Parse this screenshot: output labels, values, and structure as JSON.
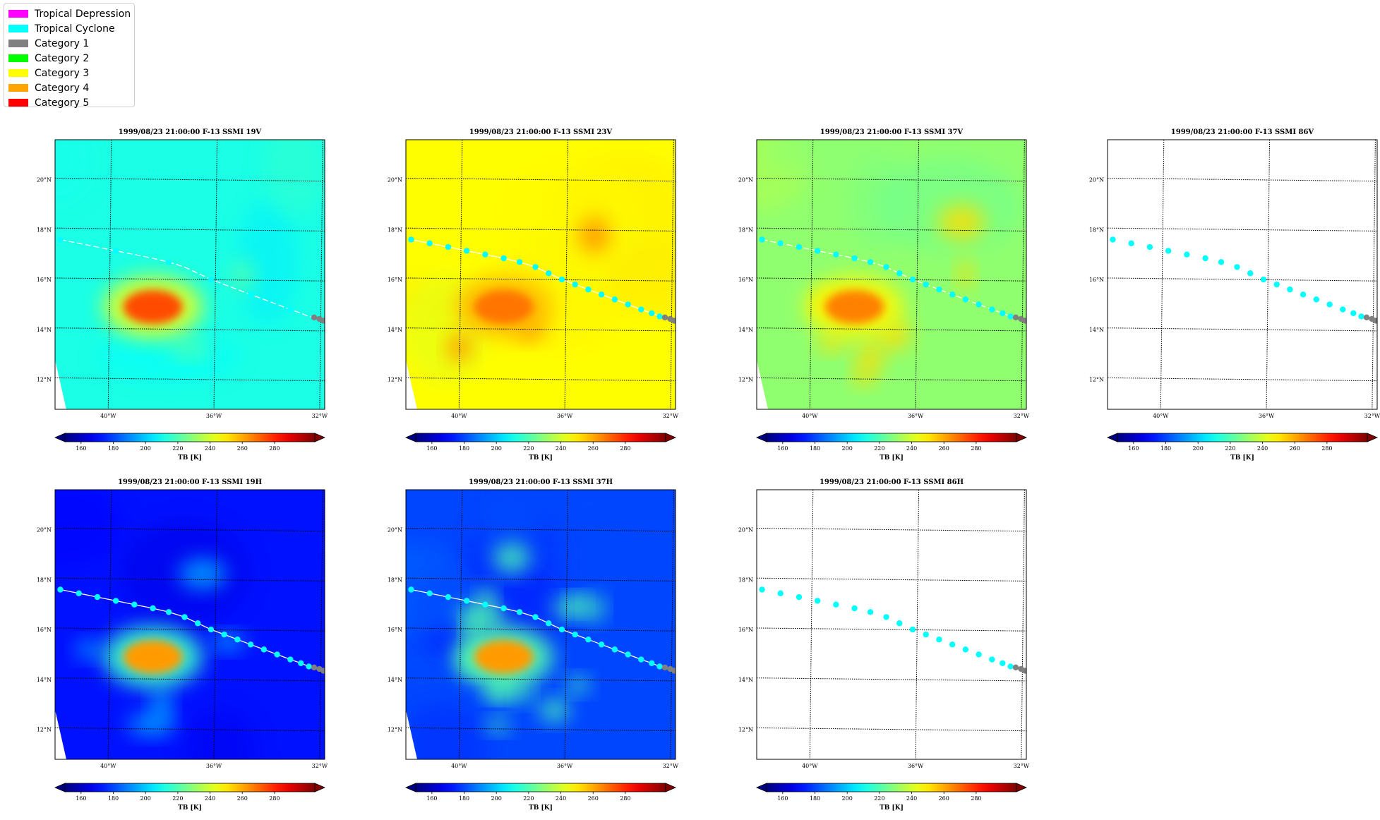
{
  "legend": {
    "items": [
      {
        "label": "Tropical Depression",
        "color": "#ff00ff"
      },
      {
        "label": "Tropical Cyclone",
        "color": "#00ffff"
      },
      {
        "label": "Category 1",
        "color": "#808080"
      },
      {
        "label": "Category 2",
        "color": "#00ff00"
      },
      {
        "label": "Category 3",
        "color": "#ffff00"
      },
      {
        "label": "Category 4",
        "color": "#ffa500"
      },
      {
        "label": "Category 5",
        "color": "#ff0000"
      }
    ]
  },
  "map_extent": {
    "lon": [
      -42.1,
      -31.9
    ],
    "lat": [
      10.8,
      21.6
    ]
  },
  "lon_ticks": [
    "40°W",
    "36°W",
    "32°W"
  ],
  "lat_ticks": [
    "20°N",
    "18°N",
    "16°N",
    "14°N",
    "12°N"
  ],
  "colorbar": {
    "ticks": [
      "160",
      "180",
      "200",
      "220",
      "240",
      "260",
      "280"
    ],
    "label": "TB [K]",
    "range": [
      150,
      305
    ],
    "extend": "both",
    "colormap": "jet"
  },
  "track": [
    {
      "lon": -41.9,
      "lat": 17.6,
      "cat": "Tropical Cyclone"
    },
    {
      "lon": -41.2,
      "lat": 17.45,
      "cat": "Tropical Cyclone"
    },
    {
      "lon": -40.5,
      "lat": 17.3,
      "cat": "Tropical Cyclone"
    },
    {
      "lon": -39.8,
      "lat": 17.15,
      "cat": "Tropical Cyclone"
    },
    {
      "lon": -39.1,
      "lat": 17.0,
      "cat": "Tropical Cyclone"
    },
    {
      "lon": -38.4,
      "lat": 16.85,
      "cat": "Tropical Cyclone"
    },
    {
      "lon": -37.8,
      "lat": 16.7,
      "cat": "Tropical Cyclone"
    },
    {
      "lon": -37.2,
      "lat": 16.5,
      "cat": "Tropical Cyclone"
    },
    {
      "lon": -36.7,
      "lat": 16.25,
      "cat": "Tropical Cyclone"
    },
    {
      "lon": -36.2,
      "lat": 16.0,
      "cat": "Tropical Cyclone"
    },
    {
      "lon": -35.7,
      "lat": 15.8,
      "cat": "Tropical Cyclone"
    },
    {
      "lon": -35.2,
      "lat": 15.6,
      "cat": "Tropical Cyclone"
    },
    {
      "lon": -34.7,
      "lat": 15.4,
      "cat": "Tropical Cyclone"
    },
    {
      "lon": -34.2,
      "lat": 15.2,
      "cat": "Tropical Cyclone"
    },
    {
      "lon": -33.7,
      "lat": 15.0,
      "cat": "Tropical Cyclone"
    },
    {
      "lon": -33.2,
      "lat": 14.8,
      "cat": "Tropical Cyclone"
    },
    {
      "lon": -32.8,
      "lat": 14.65,
      "cat": "Tropical Cyclone"
    },
    {
      "lon": -32.5,
      "lat": 14.52,
      "cat": "Tropical Cyclone"
    },
    {
      "lon": -32.3,
      "lat": 14.48,
      "cat": "Category 1"
    },
    {
      "lon": -32.1,
      "lat": 14.42,
      "cat": "Category 1"
    },
    {
      "lon": -31.95,
      "lat": 14.35,
      "cat": "Category 1"
    },
    {
      "lon": -31.8,
      "lat": 14.25,
      "cat": "Category 1"
    }
  ],
  "panels": [
    {
      "title": "1999/08/23 21:00:00  F-13 SSMI 19V",
      "field": {
        "base": 212,
        "warm": 274,
        "ring": 0,
        "base_n": 4,
        "ring_n": 2
      },
      "track_line": "dashed",
      "show_markers": "partial",
      "has_image": true
    },
    {
      "title": "1999/08/23 21:00:00  F-13 SSMI 23V",
      "field": {
        "base": 247,
        "warm": 268,
        "ring": 8,
        "base_n": 7,
        "ring_n": 3
      },
      "track_line": "solid",
      "show_markers": "all",
      "has_image": true
    },
    {
      "title": "1999/08/23 21:00:00  F-13 SSMI 37V",
      "field": {
        "base": 230,
        "warm": 266,
        "ring": 12,
        "base_n": 5,
        "ring_n": 7
      },
      "track_line": "dashed",
      "show_markers": "all",
      "has_image": true
    },
    {
      "title": "1999/08/23 21:00:00  F-13 SSMI 86V",
      "field": null,
      "track_line": "none",
      "show_markers": "all",
      "has_image": false
    },
    {
      "title": "1999/08/23 21:00:00  F-13 SSMI 19H",
      "field": {
        "base": 172,
        "warm": 262,
        "ring": 14,
        "base_n": 3,
        "ring_n": 5
      },
      "track_line": "solid",
      "show_markers": "all",
      "has_image": true
    },
    {
      "title": "1999/08/23 21:00:00  F-13 SSMI 37H",
      "field": {
        "base": 180,
        "warm": 262,
        "ring": 30,
        "base_n": 8,
        "ring_n": 14
      },
      "track_line": "solid",
      "show_markers": "all",
      "has_image": true
    },
    {
      "title": "1999/08/23 21:00:00  F-13 SSMI 86H",
      "field": null,
      "track_line": "none",
      "show_markers": "all",
      "has_image": false
    }
  ]
}
